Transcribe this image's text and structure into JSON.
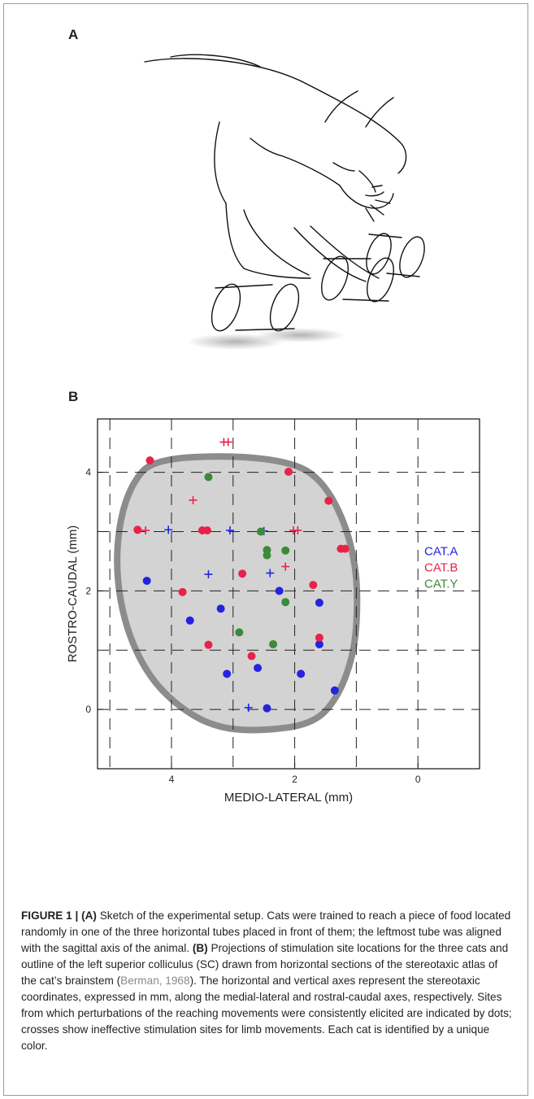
{
  "panels": {
    "a": "A",
    "b": "B"
  },
  "chart_data": {
    "type": "scatter",
    "xlabel": "MEDIO-LATERAL (mm)",
    "ylabel": "ROSTRO-CAUDAL (mm)",
    "xlim": [
      5.2,
      -1.0
    ],
    "ylim": [
      -1.0,
      4.9
    ],
    "xticks": [
      4,
      2,
      0
    ],
    "yticks": [
      0,
      2,
      4
    ],
    "x_reversed": true,
    "grid": "dashed, every 1 mm",
    "legend_position": "right",
    "marker_meaning": {
      "dot": "effective",
      "cross": "ineffective"
    },
    "series": [
      {
        "name": "CAT.A",
        "color": "#2323e0",
        "dots": [
          [
            4.4,
            2.17
          ],
          [
            3.7,
            1.5
          ],
          [
            3.2,
            1.7
          ],
          [
            3.1,
            0.6
          ],
          [
            2.6,
            0.7
          ],
          [
            2.25,
            2.0
          ],
          [
            1.6,
            1.8
          ],
          [
            1.6,
            1.1
          ],
          [
            1.9,
            0.6
          ],
          [
            1.35,
            0.32
          ],
          [
            2.45,
            0.02
          ]
        ],
        "crosses": [
          [
            4.05,
            3.03
          ],
          [
            3.4,
            2.28
          ],
          [
            3.05,
            3.02
          ],
          [
            2.5,
            3.01
          ],
          [
            2.4,
            2.3
          ],
          [
            2.75,
            0.03
          ]
        ]
      },
      {
        "name": "CAT.B",
        "color": "#e8224b",
        "dots": [
          [
            4.35,
            4.2
          ],
          [
            4.55,
            3.03
          ],
          [
            3.5,
            3.02
          ],
          [
            3.42,
            3.02
          ],
          [
            2.1,
            4.01
          ],
          [
            1.45,
            3.52
          ],
          [
            1.25,
            2.71
          ],
          [
            1.18,
            2.71
          ],
          [
            2.85,
            2.29
          ],
          [
            3.82,
            1.98
          ],
          [
            1.7,
            2.1
          ],
          [
            3.4,
            1.09
          ],
          [
            2.7,
            0.9
          ],
          [
            1.6,
            1.21
          ]
        ],
        "crosses": [
          [
            3.15,
            4.51
          ],
          [
            3.08,
            4.51
          ],
          [
            3.65,
            3.53
          ],
          [
            4.42,
            3.02
          ],
          [
            2.02,
            3.02
          ],
          [
            1.95,
            3.02
          ],
          [
            2.15,
            2.41
          ]
        ]
      },
      {
        "name": "CAT.Y",
        "color": "#3a8a3a",
        "dots": [
          [
            3.4,
            3.92
          ],
          [
            2.55,
            3.0
          ],
          [
            2.45,
            2.69
          ],
          [
            2.45,
            2.6
          ],
          [
            2.15,
            2.68
          ],
          [
            2.15,
            1.81
          ],
          [
            2.9,
            1.3
          ],
          [
            2.35,
            1.1
          ]
        ],
        "crosses": []
      }
    ]
  },
  "caption": {
    "figure_label": "FIGURE 1 | ",
    "a_label": "(A)",
    "a_text": " Sketch of the experimental setup. Cats were trained to reach a piece of food located randomly in one of the three horizontal tubes placed in front of them; the leftmost tube was aligned with the sagittal axis of the animal. ",
    "b_label": "(B)",
    "b_text": " Projections of stimulation site locations for the three cats and outline of the left superior colliculus (SC) drawn from horizontal sections of the stereotaxic atlas of the cat’s brainstem (",
    "citation": "Berman, 1968",
    "b_text_end": "). The horizontal and vertical axes represent the stereotaxic coordinates, expressed in mm, along the medial-lateral and rostral-caudal axes, respectively. Sites from which perturbations of the reaching movements were consistently elicited are indicated by dots; crosses show ineffective stimulation sites for limb movements. Each cat is identified by a unique color."
  }
}
